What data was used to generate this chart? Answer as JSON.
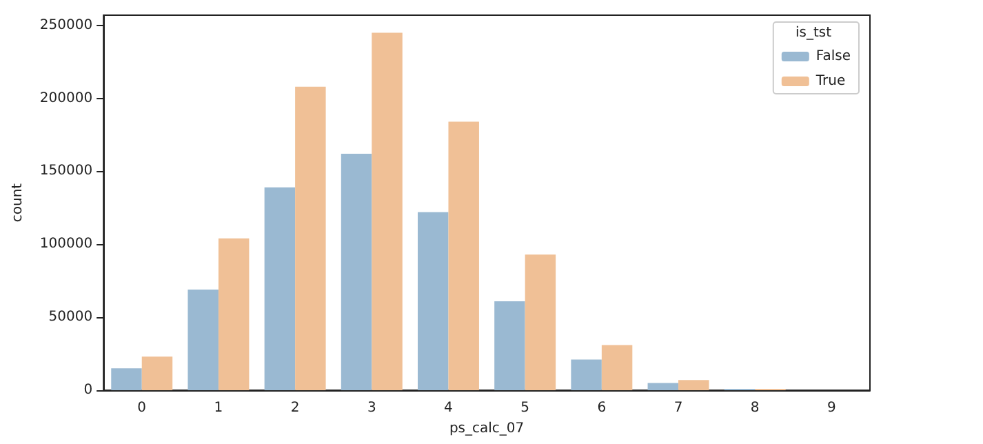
{
  "chart_data": {
    "type": "bar",
    "xlabel": "ps_calc_07",
    "ylabel": "count",
    "legend_title": "is_tst",
    "legend": "top right",
    "grid": false,
    "categories": [
      "0",
      "1",
      "2",
      "3",
      "4",
      "5",
      "6",
      "7",
      "8",
      "9"
    ],
    "ylim": [
      0,
      257000
    ],
    "yticks": [
      0,
      50000,
      100000,
      150000,
      200000,
      250000
    ],
    "series": [
      {
        "name": "False",
        "color": "#9ab9d2",
        "values": [
          15000,
          69000,
          139000,
          162000,
          122000,
          61000,
          21000,
          5000,
          1000,
          0
        ]
      },
      {
        "name": "True",
        "color": "#f0c096",
        "values": [
          23000,
          104000,
          208000,
          245000,
          184000,
          93000,
          31000,
          7000,
          1000,
          0
        ]
      }
    ]
  }
}
